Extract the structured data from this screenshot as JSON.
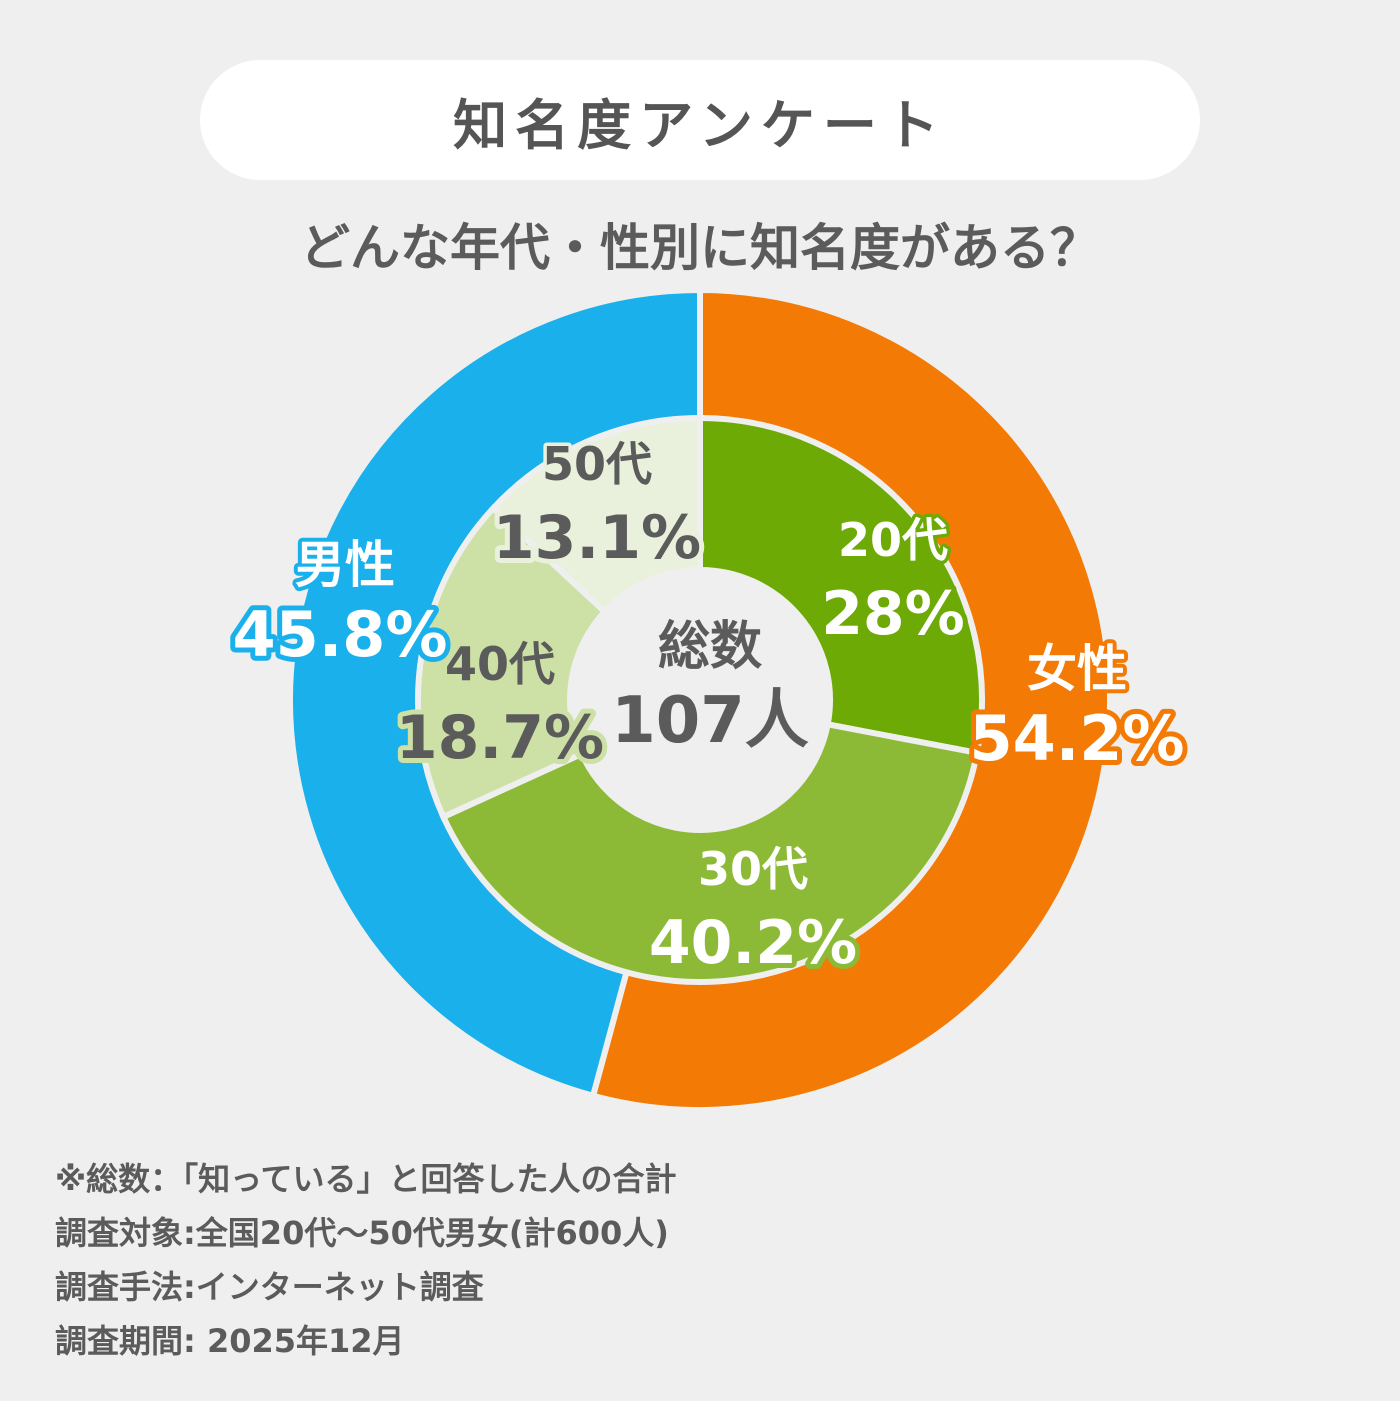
{
  "header": {
    "title": "知名度アンケート",
    "subtitle": "どんな年代・性別に知名度がある？"
  },
  "center_label": {
    "line1": "総数",
    "line2": "107人"
  },
  "colors": {
    "male": "#1ab0ec",
    "female": "#f37a04",
    "age20": "#6daa06",
    "age30": "#8cba36",
    "age40": "#cde0a5",
    "age50": "#e9f1dc",
    "text": "#5b5b5b",
    "background": "#efefef"
  },
  "chart_data": [
    {
      "type": "pie",
      "ring": "outer",
      "categories": [
        "女性",
        "男性"
      ],
      "values": [
        54.2,
        45.8
      ],
      "labels": [
        "54.2%",
        "45.8%"
      ]
    },
    {
      "type": "pie",
      "ring": "inner",
      "categories": [
        "20代",
        "30代",
        "40代",
        "50代"
      ],
      "values": [
        28,
        40.2,
        18.7,
        13.1
      ],
      "labels": [
        "28%",
        "40.2%",
        "18.7%",
        "13.1%"
      ]
    }
  ],
  "notes": [
    "※総数：「知っている」と回答した人の合計",
    "調査対象:全国20代〜50代男女(計600人)",
    "調査手法:インターネット調査",
    "調査期間: 2025年12月"
  ]
}
